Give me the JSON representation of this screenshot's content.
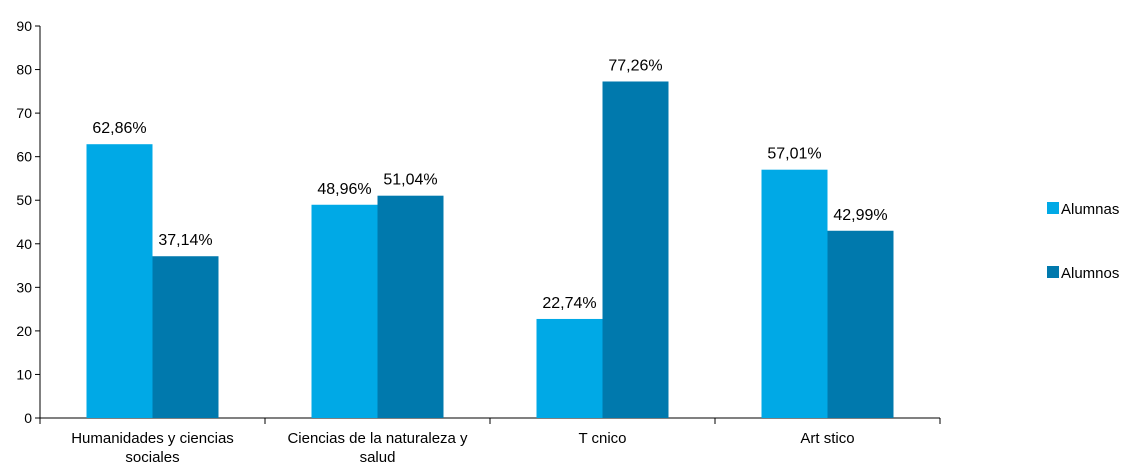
{
  "chart_data": {
    "type": "bar",
    "title": "",
    "xlabel": "",
    "ylabel": "",
    "ylim": [
      0,
      90
    ],
    "yticks": [
      0,
      10,
      20,
      30,
      40,
      50,
      60,
      70,
      80,
      90
    ],
    "grid": false,
    "legend_position": "right",
    "categories": [
      [
        "Humanidades y ciencias",
        "sociales"
      ],
      [
        "Ciencias de la naturaleza y",
        "salud"
      ],
      [
        "T cnico"
      ],
      [
        "Art stico"
      ]
    ],
    "series": [
      {
        "name": "Alumnas",
        "color": "#00a9e6",
        "values": [
          62.86,
          48.96,
          22.74,
          57.01
        ],
        "labels": [
          "62,86%",
          "48,96%",
          "22,74%",
          "57,01%"
        ]
      },
      {
        "name": "Alumnos",
        "color": "#0079ad",
        "values": [
          37.14,
          51.04,
          77.26,
          42.99
        ],
        "labels": [
          "37,14%",
          "51,04%",
          "77,26%",
          "42,99%"
        ]
      }
    ]
  }
}
